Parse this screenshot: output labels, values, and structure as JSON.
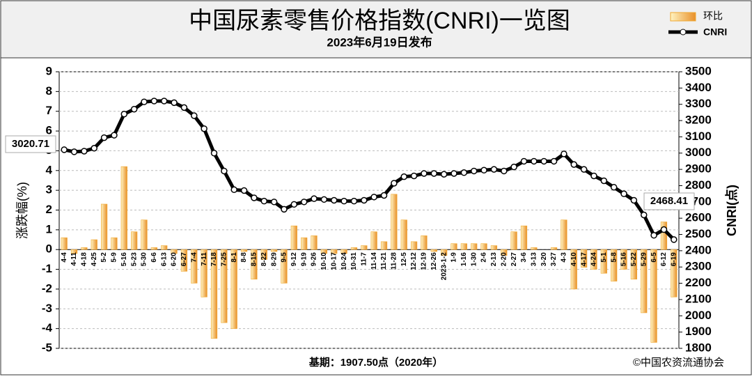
{
  "chart_data": {
    "type": "combo",
    "title": "中国尿素零售价格指数(CNRI)一览图",
    "subtitle": "2023年6月19日发布",
    "y_label": "涨跌幅(%)",
    "y2_label": "CNRI(点)",
    "footer": "基期：1907.50点（2020年）",
    "source": "©中国农资流通协会",
    "grid": true,
    "legend": "top-right",
    "categories": [
      "4-4",
      "4-11",
      "4-18",
      "4-25",
      "5-2",
      "5-9",
      "5-16",
      "5-23",
      "5-30",
      "6-6",
      "6-13",
      "6-20",
      "6-27",
      "7-4",
      "7-11",
      "7-18",
      "7-25",
      "8-1",
      "8-8",
      "8-15",
      "8-22",
      "8-29",
      "9-5",
      "9-12",
      "9-19",
      "9-26",
      "10-10",
      "10-17",
      "10-24",
      "10-31",
      "11-7",
      "11-14",
      "11-21",
      "11-28",
      "12-5",
      "12-12",
      "12-19",
      "12-26",
      "2023-1-2",
      "1-9",
      "1-16",
      "1-30",
      "2-6",
      "2-13",
      "2-20",
      "2-27",
      "3-6",
      "3-13",
      "3-20",
      "3-27",
      "4-3",
      "4-10",
      "4-17",
      "4-24",
      "5-1",
      "5-8",
      "5-16",
      "5-22",
      "5-29",
      "6-5",
      "6-12",
      "6-19"
    ],
    "series": [
      {
        "name": "环比",
        "type": "bar",
        "color": "#f0a830",
        "values": [
          0.6,
          -0.2,
          0.1,
          0.5,
          2.3,
          0.6,
          4.2,
          0.9,
          1.5,
          0.1,
          0.2,
          -0.2,
          -1.1,
          -1.7,
          -2.4,
          -4.5,
          -3.7,
          -4.0,
          -0.1,
          -1.5,
          -0.5,
          -0.1,
          -1.7,
          1.2,
          0.6,
          0.7,
          -0.2,
          -0.2,
          -0.2,
          0.1,
          0.2,
          0.9,
          0.4,
          2.8,
          1.5,
          0.4,
          0.7,
          -0.1,
          -0.3,
          0.3,
          0.3,
          0.3,
          0.3,
          0.2,
          -0.3,
          0.9,
          1.2,
          0.1,
          0,
          0.1,
          1.5,
          -2.0,
          -0.9,
          -1.0,
          -1.2,
          -1.6,
          -1.0,
          -1.5,
          -3.2,
          -4.7,
          1.4,
          -2.4
        ]
      },
      {
        "name": "CNRI",
        "type": "line",
        "axis": "y2",
        "color": "#000000",
        "values": [
          3020.71,
          3008,
          3012,
          3030,
          3095,
          3110,
          3240,
          3270,
          3315,
          3320,
          3320,
          3310,
          3280,
          3230,
          3150,
          3000,
          2890,
          2775,
          2770,
          2725,
          2705,
          2700,
          2655,
          2685,
          2700,
          2720,
          2715,
          2710,
          2705,
          2705,
          2710,
          2730,
          2740,
          2815,
          2855,
          2860,
          2875,
          2875,
          2870,
          2875,
          2880,
          2890,
          2895,
          2900,
          2890,
          2915,
          2950,
          2950,
          2950,
          2950,
          2995,
          2930,
          2900,
          2860,
          2830,
          2790,
          2750,
          2710,
          2620,
          2495,
          2530,
          2468.41
        ]
      }
    ],
    "ylim": [
      -5,
      9
    ],
    "yticks": [
      -5,
      -4,
      -3,
      -2,
      -1,
      0,
      1,
      2,
      3,
      4,
      5,
      6,
      7,
      8,
      9
    ],
    "y2lim": [
      1800,
      3500
    ],
    "y2ticks": [
      1800,
      1900,
      2000,
      2100,
      2200,
      2300,
      2400,
      2500,
      2600,
      2700,
      2800,
      2900,
      3000,
      3100,
      3200,
      3300,
      3400,
      3500
    ]
  }
}
